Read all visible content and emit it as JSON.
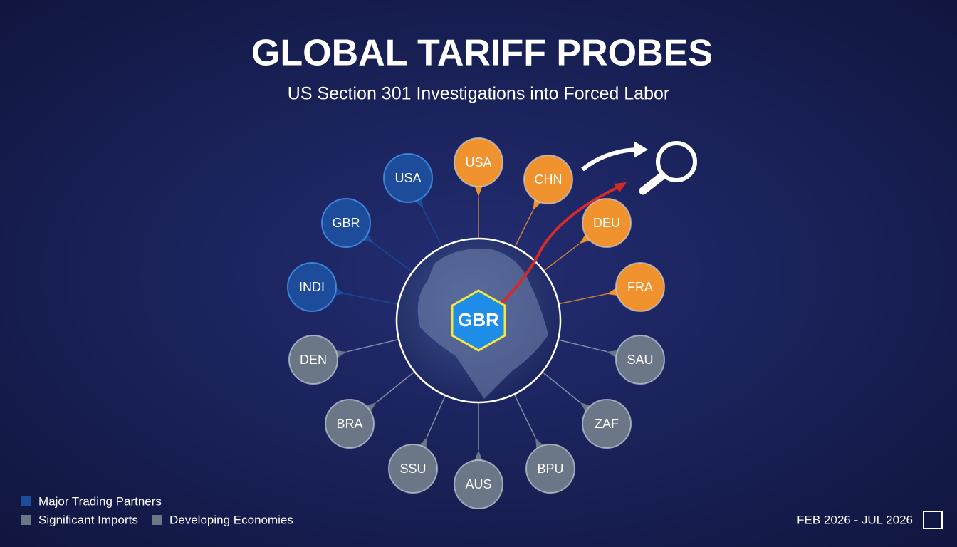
{
  "header": {
    "title": "GLOBAL TARIFF PROBES",
    "subtitle": "US Section 301 Investigations into Forced Labor"
  },
  "center": {
    "label": "GBR"
  },
  "nodes": [
    {
      "label": "USA",
      "color": "#1d4c9a"
    },
    {
      "label": "USA",
      "color": "#f0922e"
    },
    {
      "label": "CHN",
      "color": "#f0922e"
    },
    {
      "label": "DEU",
      "color": "#f0922e"
    },
    {
      "label": "FRA",
      "color": "#f0922e"
    },
    {
      "label": "GBR",
      "color": "#1d4c9a"
    },
    {
      "label": "INDI",
      "color": "#1d4c9a"
    },
    {
      "label": "DEN",
      "color": "#6b7787"
    },
    {
      "label": "SAU",
      "color": "#6b7787"
    },
    {
      "label": "BRA",
      "color": "#6b7787"
    },
    {
      "label": "ZAF",
      "color": "#6b7787"
    },
    {
      "label": "SSU",
      "color": "#6b7787"
    },
    {
      "label": "BPU",
      "color": "#6b7787"
    },
    {
      "label": "AUS",
      "color": "#6b7787"
    }
  ],
  "legend": [
    {
      "label": "Major Trading Partners",
      "color": "#1d4c9a"
    },
    {
      "label": "Significant Imports",
      "color": "#6b7787"
    },
    {
      "label": "Developing Economies",
      "color": "#6b7787"
    }
  ],
  "footer": {
    "date_range": "FEB 2026 - JUL 2026"
  }
}
